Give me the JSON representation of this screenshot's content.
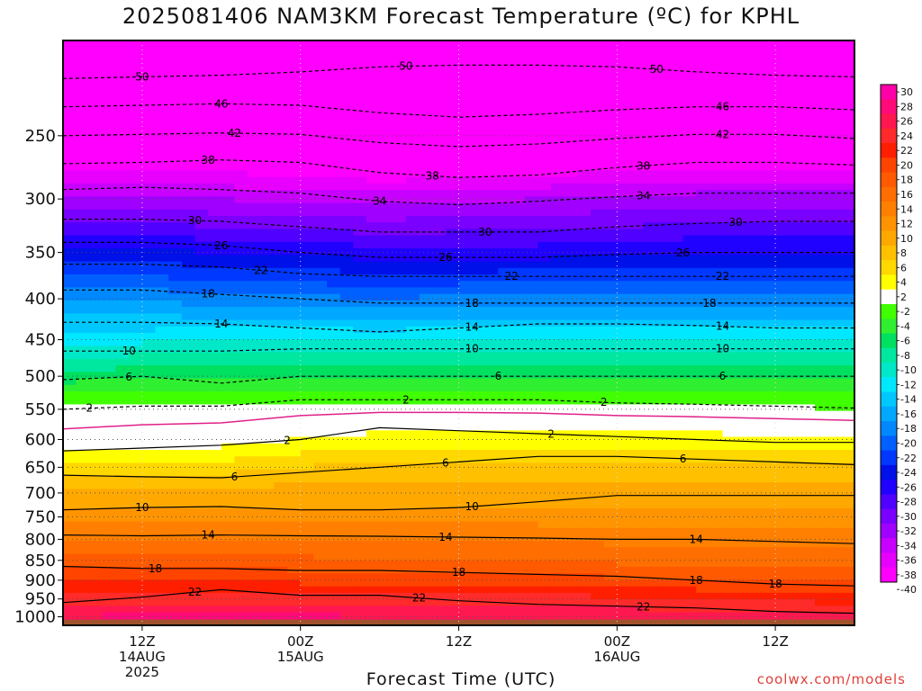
{
  "chart_data": {
    "type": "heatmap",
    "title": "2025081406 NAM3KM Forecast Temperature (ºC) for KPHL",
    "xlabel": "Forecast Time (UTC)",
    "credit": "coolwx.com/models",
    "yaxis": {
      "label": "",
      "scale": "log-pressure",
      "inverted": true,
      "ylim": [
        1025,
        190
      ],
      "ticks": [
        1000,
        950,
        900,
        850,
        800,
        750,
        700,
        650,
        600,
        550,
        500,
        450,
        400,
        350,
        300,
        250
      ]
    },
    "xaxis": {
      "ticks": [
        {
          "hour": 6,
          "lines": [
            "12Z",
            "14AUG",
            "2025"
          ]
        },
        {
          "hour": 18,
          "lines": [
            "00Z",
            "15AUG"
          ]
        },
        {
          "hour": 30,
          "lines": [
            "12Z"
          ]
        },
        {
          "hour": 42,
          "lines": [
            "00Z",
            "16AUG"
          ]
        },
        {
          "hour": 54,
          "lines": [
            "12Z"
          ]
        }
      ],
      "xlim": [
        0,
        60
      ]
    },
    "grid": true,
    "colorbar": {
      "levels": [
        30,
        28,
        26,
        24,
        22,
        20,
        18,
        16,
        14,
        12,
        10,
        8,
        6,
        4,
        2,
        -2,
        -4,
        -6,
        -8,
        -10,
        -12,
        -14,
        -16,
        -18,
        -20,
        -22,
        -24,
        -26,
        -28,
        -30,
        -32,
        -34,
        -36,
        -38,
        -40
      ],
      "colors": [
        "#ff00a8",
        "#ff0a78",
        "#ff1850",
        "#ff2a2a",
        "#ff1f00",
        "#ff4400",
        "#ff5a00",
        "#ff6e00",
        "#ff8000",
        "#ff9400",
        "#ffa800",
        "#ffc000",
        "#ffd800",
        "#ffff00",
        "#ffffff",
        "#40ff00",
        "#30ef30",
        "#00e060",
        "#00e8a0",
        "#00e8c8",
        "#00e8ff",
        "#00c8ff",
        "#00a8ff",
        "#0088ff",
        "#0060ff",
        "#0038ff",
        "#0010e8",
        "#2000ff",
        "#5000ff",
        "#7a00ff",
        "#a000ff",
        "#c800ff",
        "#e800ff",
        "#ff00ff"
      ]
    },
    "contours": [
      {
        "value": 22,
        "x": [
          0,
          6,
          12,
          18,
          24,
          30,
          36,
          42,
          48,
          54,
          60
        ],
        "p": [
          960,
          945,
          925,
          940,
          940,
          955,
          965,
          970,
          975,
          985,
          990
        ],
        "labels": [
          {
            "hour": 10,
            "text": "22"
          },
          {
            "hour": 27,
            "text": "22"
          },
          {
            "hour": 44,
            "text": "22"
          }
        ]
      },
      {
        "value": 18,
        "x": [
          0,
          6,
          12,
          18,
          24,
          30,
          36,
          42,
          48,
          54,
          60
        ],
        "p": [
          865,
          870,
          870,
          875,
          875,
          880,
          885,
          890,
          900,
          910,
          915
        ],
        "labels": [
          {
            "hour": 7,
            "text": "18"
          },
          {
            "hour": 30,
            "text": "18"
          },
          {
            "hour": 48,
            "text": "18"
          },
          {
            "hour": 54,
            "text": "18"
          }
        ]
      },
      {
        "value": 14,
        "x": [
          0,
          6,
          12,
          18,
          24,
          30,
          36,
          42,
          48,
          54,
          60
        ],
        "p": [
          790,
          792,
          790,
          792,
          793,
          795,
          797,
          800,
          800,
          805,
          810
        ],
        "labels": [
          {
            "hour": 11,
            "text": "14"
          },
          {
            "hour": 29,
            "text": "14"
          },
          {
            "hour": 48,
            "text": "14"
          }
        ]
      },
      {
        "value": 10,
        "x": [
          0,
          6,
          12,
          18,
          24,
          30,
          36,
          42,
          48,
          54,
          60
        ],
        "p": [
          735,
          730,
          728,
          735,
          735,
          730,
          718,
          705,
          705,
          705,
          705
        ],
        "labels": [
          {
            "hour": 6,
            "text": "10"
          },
          {
            "hour": 31,
            "text": "10"
          }
        ]
      },
      {
        "value": 6,
        "x": [
          0,
          6,
          12,
          18,
          24,
          30,
          36,
          42,
          48,
          54,
          60
        ],
        "p": [
          665,
          668,
          670,
          660,
          650,
          640,
          630,
          630,
          635,
          640,
          645
        ],
        "labels": [
          {
            "hour": 13,
            "text": "6"
          },
          {
            "hour": 29,
            "text": "6"
          },
          {
            "hour": 47,
            "text": "6"
          }
        ]
      },
      {
        "value": 2,
        "x": [
          0,
          6,
          12,
          18,
          24,
          30,
          36,
          42,
          48,
          54,
          60
        ],
        "p": [
          620,
          615,
          610,
          600,
          580,
          585,
          590,
          595,
          600,
          605,
          605
        ],
        "labels": [
          {
            "hour": 17,
            "text": "2"
          },
          {
            "hour": 37,
            "text": "2"
          }
        ]
      },
      {
        "value": 2,
        "x": [
          0,
          6,
          12,
          18,
          24,
          30,
          36,
          42,
          48,
          54,
          60
        ],
        "p": [
          550,
          545,
          545,
          535,
          535,
          535,
          535,
          540,
          542,
          545,
          548
        ],
        "dashed": true,
        "labels": [
          {
            "hour": 2,
            "text": "2"
          },
          {
            "hour": 26,
            "text": "2"
          },
          {
            "hour": 41,
            "text": "2"
          }
        ]
      },
      {
        "value": 6,
        "x": [
          0,
          6,
          12,
          18,
          24,
          30,
          36,
          42,
          48,
          54,
          60
        ],
        "p": [
          505,
          500,
          510,
          500,
          500,
          500,
          500,
          500,
          500,
          500,
          500
        ],
        "dashed": true,
        "labels": [
          {
            "hour": 5,
            "text": "6"
          },
          {
            "hour": 33,
            "text": "6"
          },
          {
            "hour": 50,
            "text": "6"
          }
        ]
      },
      {
        "value": 10,
        "x": [
          0,
          6,
          12,
          18,
          24,
          30,
          36,
          42,
          48,
          54,
          60
        ],
        "p": [
          465,
          465,
          465,
          462,
          462,
          462,
          462,
          462,
          462,
          462,
          462
        ],
        "dashed": true,
        "labels": [
          {
            "hour": 5,
            "text": "10"
          },
          {
            "hour": 31,
            "text": "10"
          },
          {
            "hour": 50,
            "text": "10"
          }
        ]
      },
      {
        "value": 14,
        "x": [
          0,
          6,
          12,
          18,
          24,
          30,
          36,
          42,
          48,
          54,
          60
        ],
        "p": [
          428,
          428,
          430,
          435,
          440,
          435,
          430,
          430,
          432,
          435,
          435
        ],
        "dashed": true,
        "labels": [
          {
            "hour": 12,
            "text": "14"
          },
          {
            "hour": 31,
            "text": "14"
          },
          {
            "hour": 50,
            "text": "14"
          }
        ]
      },
      {
        "value": 18,
        "x": [
          0,
          6,
          12,
          18,
          24,
          30,
          36,
          42,
          48,
          54,
          60
        ],
        "p": [
          390,
          390,
          395,
          400,
          405,
          405,
          405,
          405,
          405,
          405,
          405
        ],
        "dashed": true,
        "labels": [
          {
            "hour": 11,
            "text": "18"
          },
          {
            "hour": 31,
            "text": "18"
          },
          {
            "hour": 49,
            "text": "18"
          }
        ]
      },
      {
        "value": 22,
        "x": [
          0,
          6,
          12,
          18,
          24,
          30,
          36,
          42,
          48,
          54,
          60
        ],
        "p": [
          362,
          362,
          365,
          372,
          375,
          375,
          375,
          375,
          375,
          375,
          375
        ],
        "dashed": true,
        "labels": [
          {
            "hour": 15,
            "text": "22"
          },
          {
            "hour": 34,
            "text": "22"
          },
          {
            "hour": 50,
            "text": "22"
          }
        ]
      },
      {
        "value": 26,
        "x": [
          0,
          6,
          12,
          18,
          24,
          30,
          36,
          42,
          48,
          54,
          60
        ],
        "p": [
          340,
          340,
          343,
          350,
          355,
          355,
          355,
          352,
          350,
          350,
          350
        ],
        "dashed": true,
        "labels": [
          {
            "hour": 12,
            "text": "26"
          },
          {
            "hour": 29,
            "text": "26"
          },
          {
            "hour": 47,
            "text": "26"
          }
        ]
      },
      {
        "value": 30,
        "x": [
          0,
          6,
          12,
          18,
          24,
          30,
          36,
          42,
          48,
          54,
          60
        ],
        "p": [
          318,
          318,
          320,
          325,
          330,
          330,
          330,
          325,
          322,
          320,
          320
        ],
        "dashed": true,
        "labels": [
          {
            "hour": 10,
            "text": "30"
          },
          {
            "hour": 32,
            "text": "30"
          },
          {
            "hour": 51,
            "text": "30"
          }
        ]
      },
      {
        "value": 34,
        "x": [
          0,
          6,
          12,
          18,
          24,
          30,
          36,
          42,
          48,
          54,
          60
        ],
        "p": [
          292,
          290,
          292,
          295,
          302,
          305,
          302,
          298,
          295,
          295,
          295
        ],
        "dashed": true,
        "labels": [
          {
            "hour": 24,
            "text": "34"
          },
          {
            "hour": 44,
            "text": "34"
          }
        ]
      },
      {
        "value": 38,
        "x": [
          0,
          6,
          12,
          18,
          24,
          30,
          36,
          42,
          48,
          54,
          60
        ],
        "p": [
          271,
          270,
          268,
          270,
          278,
          282,
          280,
          274,
          270,
          270,
          272
        ],
        "dashed": true,
        "labels": [
          {
            "hour": 11,
            "text": "38"
          },
          {
            "hour": 28,
            "text": "38"
          },
          {
            "hour": 44,
            "text": "38"
          }
        ]
      },
      {
        "value": 42,
        "x": [
          0,
          6,
          12,
          18,
          24,
          30,
          36,
          42,
          48,
          54,
          60
        ],
        "p": [
          250,
          249,
          248,
          249,
          255,
          258,
          256,
          252,
          249,
          249,
          252
        ],
        "dashed": true,
        "labels": [
          {
            "hour": 13,
            "text": "42"
          },
          {
            "hour": 50,
            "text": "42"
          }
        ]
      },
      {
        "value": 46,
        "x": [
          0,
          6,
          12,
          18,
          24,
          30,
          36,
          42,
          48,
          54,
          60
        ],
        "p": [
          230,
          229,
          228,
          229,
          234,
          237,
          235,
          232,
          230,
          230,
          232
        ],
        "dashed": true,
        "labels": [
          {
            "hour": 12,
            "text": "46"
          },
          {
            "hour": 50,
            "text": "46"
          }
        ]
      },
      {
        "value": 50,
        "x": [
          0,
          6,
          12,
          18,
          24,
          30,
          36,
          42,
          48,
          54,
          60
        ],
        "p": [
          212,
          211,
          210,
          208,
          205,
          204,
          204,
          205,
          208,
          210,
          211
        ],
        "dashed": true,
        "labels": [
          {
            "hour": 6,
            "text": "50"
          },
          {
            "hour": 26,
            "text": "50"
          },
          {
            "hour": 45,
            "text": "50"
          }
        ]
      }
    ],
    "freezing_line": {
      "x": [
        0,
        6,
        12,
        18,
        24,
        30,
        36,
        42,
        48,
        54,
        60
      ],
      "p": [
        582,
        575,
        572,
        560,
        555,
        555,
        556,
        560,
        562,
        565,
        568
      ],
      "color": "#e0208a"
    },
    "temperature_field": {
      "p": [
        1000,
        950,
        900,
        850,
        800,
        750,
        700,
        650,
        600,
        550,
        500,
        450,
        400,
        350,
        300,
        250,
        200
      ],
      "x": [
        0,
        12,
        24,
        36,
        48,
        60
      ],
      "t": [
        [
          26,
          27,
          26,
          26,
          25,
          25
        ],
        [
          23,
          23,
          23,
          23,
          22,
          21
        ],
        [
          20,
          20,
          19,
          19,
          18,
          18
        ],
        [
          17,
          17,
          16,
          16,
          15,
          15
        ],
        [
          14,
          14,
          14,
          14,
          13,
          13
        ],
        [
          11,
          11,
          11,
          11,
          11,
          11
        ],
        [
          9,
          9,
          9,
          9,
          9,
          9
        ],
        [
          5,
          5,
          7,
          7,
          7,
          7
        ],
        [
          1,
          1,
          3,
          3,
          3,
          2
        ],
        [
          -1,
          -1,
          -1,
          -1,
          -1,
          -2
        ],
        [
          -7,
          -6,
          -6,
          -6,
          -6,
          -6
        ],
        [
          -13,
          -12,
          -12,
          -12,
          -12,
          -12
        ],
        [
          -18,
          -19,
          -20,
          -19,
          -19,
          -19
        ],
        [
          -25,
          -26,
          -27,
          -27,
          -26,
          -26
        ],
        [
          -33,
          -34,
          -35,
          -34,
          -33,
          -33
        ],
        [
          -43,
          -43,
          -45,
          -44,
          -43,
          -43
        ],
        [
          -52,
          -52,
          -52,
          -52,
          -52,
          -52
        ]
      ]
    }
  }
}
